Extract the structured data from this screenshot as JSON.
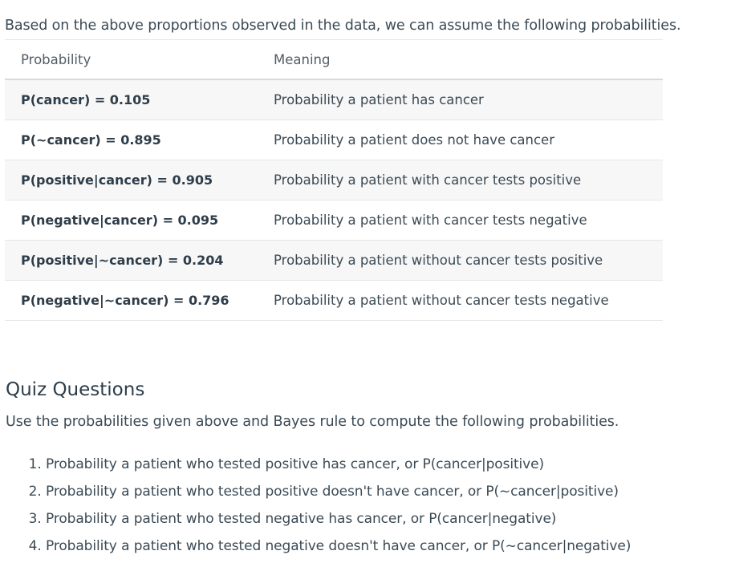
{
  "intro_text": "Based on the above proportions observed in the data, we can assume the following probabilities.",
  "table": {
    "headers": [
      "Probability",
      "Meaning"
    ],
    "rows": [
      {
        "expr": "P(cancer) = 0.105",
        "meaning": "Probability a patient has cancer"
      },
      {
        "expr": "P(~cancer) = 0.895",
        "meaning": "Probability a patient does not have cancer"
      },
      {
        "expr": "P(positive|cancer) = 0.905",
        "meaning": "Probability a patient with cancer tests positive"
      },
      {
        "expr": "P(negative|cancer) = 0.095",
        "meaning": "Probability a patient with cancer tests negative"
      },
      {
        "expr": "P(positive|~cancer) = 0.204",
        "meaning": "Probability a patient without cancer tests positive"
      },
      {
        "expr": "P(negative|~cancer) = 0.796",
        "meaning": "Probability a patient without cancer tests negative"
      }
    ]
  },
  "quiz": {
    "title": "Quiz Questions",
    "intro": "Use the probabilities given above and Bayes rule to compute the following probabilities.",
    "items": [
      "Probability a patient who tested positive has cancer, or P(cancer|positive)",
      "Probability a patient who tested positive doesn't have cancer, or P(~cancer|positive)",
      "Probability a patient who tested negative has cancer, or P(cancer|negative)",
      "Probability a patient who tested negative doesn't have cancer, or P(~cancer|negative)"
    ]
  }
}
